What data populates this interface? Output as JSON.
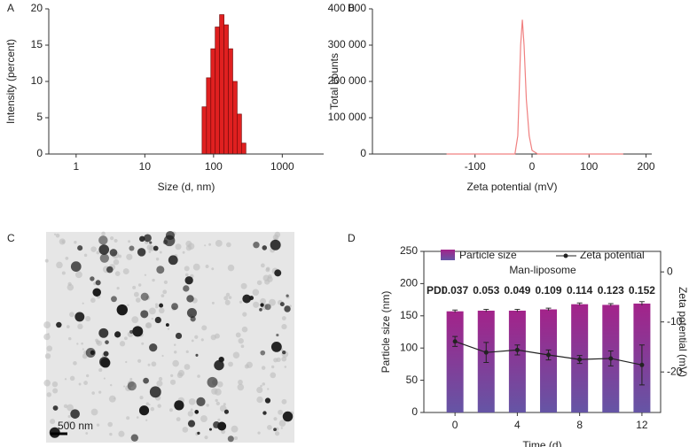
{
  "chart_data": [
    {
      "type": "histogram",
      "panel": "A",
      "xlabel": "Size (d, nm)",
      "ylabel": "Intensity (percent)",
      "bins": [
        68.06,
        78.82,
        91.28,
        105.7,
        122.4,
        141.8,
        164.2,
        190.1,
        220.2,
        255,
        295.3
      ],
      "values": [
        6.5,
        10.5,
        14.5,
        17.5,
        19.2,
        17.8,
        14.5,
        10,
        5.5,
        1.5
      ],
      "color": "#e02020",
      "xlog": true,
      "xlim": [
        0.4,
        4000
      ],
      "xticks": [
        1,
        10,
        100,
        1000
      ],
      "ylim": [
        0,
        20
      ],
      "yticks": [
        0,
        5,
        10,
        15,
        20
      ]
    },
    {
      "type": "line",
      "panel": "B",
      "xlabel": "Zeta potential (mV)",
      "ylabel": "Total counts",
      "x": [
        -150,
        -30,
        -25,
        -20,
        -17,
        -14,
        -10,
        -5,
        0,
        10,
        160
      ],
      "values": [
        0,
        0,
        50000,
        300000,
        370000,
        300000,
        150000,
        50000,
        10000,
        0,
        0
      ],
      "color": "#f08080",
      "xlim": [
        -280,
        210
      ],
      "xticks": [
        -100,
        0,
        100,
        200
      ],
      "ylim": [
        0,
        400000
      ],
      "yticks": [
        0,
        {
          "value": 100000,
          "label": "100 000"
        },
        {
          "value": 200000,
          "label": "200 000"
        },
        {
          "value": 300000,
          "label": "300 000"
        },
        {
          "value": 400000,
          "label": "400 000"
        }
      ]
    },
    {
      "type": "image",
      "panel": "C",
      "scale_bar": "500 nm"
    },
    {
      "type": "combo",
      "panel": "D",
      "subtitle": "Man-liposome",
      "xlabel": "Time (d)",
      "ylabel": "Particle size (nm)",
      "y2label": "Zeta potential (mV)",
      "x": [
        0,
        2,
        4,
        6,
        8,
        10,
        12
      ],
      "series": [
        {
          "name": "Particle size",
          "color": "#a3238a",
          "gradient_to": "#6555a5",
          "values": [
            157,
            158,
            158,
            160,
            168,
            167,
            169
          ],
          "errors": [
            2,
            2,
            2,
            2,
            2,
            2,
            3
          ]
        },
        {
          "name": "Zeta potential",
          "color": "#222222",
          "axis": "y2",
          "values": [
            -13.9,
            -16.1,
            -15.6,
            -16.6,
            -17.5,
            -17.3,
            -18.6
          ],
          "errors": [
            1,
            2,
            1,
            1,
            0.8,
            1.5,
            4
          ]
        }
      ],
      "pdi_label": "PDI",
      "pdi": [
        0.037,
        0.053,
        0.049,
        0.109,
        0.114,
        0.123,
        0.152
      ],
      "pdi_color": "#e02020",
      "xlim": [
        -2,
        13.2
      ],
      "xticks": [
        0,
        4,
        8,
        12
      ],
      "ylim": [
        0,
        250
      ],
      "yticks": [
        0,
        50,
        100,
        150,
        200,
        250
      ],
      "y2lim": [
        -28.1,
        4.1
      ],
      "y2ticks": [
        0,
        -10,
        -20
      ]
    }
  ]
}
